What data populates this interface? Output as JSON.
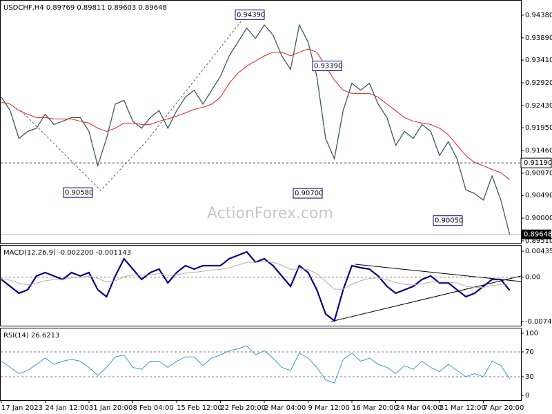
{
  "watermark": "ActionForex.com",
  "chart_data": [
    {
      "type": "line",
      "title": "USDCHF,H4 0.89769 0.89811 0.89603 0.89648",
      "categories": [
        "17 Jan 2023",
        null,
        null,
        null,
        null,
        "24 Jan 12:00",
        null,
        null,
        null,
        null,
        "31 Jan 20:00",
        null,
        null,
        null,
        null,
        "8 Feb 04:00",
        null,
        null,
        null,
        null,
        "15 Feb 12:00",
        null,
        null,
        null,
        null,
        "22 Feb 20:00",
        null,
        null,
        null,
        null,
        "2 Mar 04:00",
        null,
        null,
        null,
        null,
        "9 Mar 12:00",
        null,
        null,
        null,
        null,
        "16 Mar 20:00",
        null,
        null,
        null,
        null,
        "24 Mar 04:00",
        null,
        null,
        null,
        null,
        "31 Mar 12:00",
        null,
        null,
        null,
        null,
        "7 Apr 20:00",
        null,
        null,
        null
      ],
      "series": [
        {
          "color": "#3a5a5a",
          "values": [
            0.9261,
            0.9232,
            0.9172,
            0.9187,
            0.9194,
            0.9224,
            0.9202,
            0.9209,
            0.9217,
            0.9217,
            0.9187,
            0.9113,
            0.9172,
            0.9246,
            0.9254,
            0.9209,
            0.9194,
            0.9217,
            0.9232,
            0.9194,
            0.9232,
            0.9261,
            0.9276,
            0.9246,
            0.9276,
            0.9306,
            0.935,
            0.938,
            0.941,
            0.9388,
            0.9417,
            0.9395,
            0.935,
            0.9321,
            0.9417,
            0.938,
            0.9306,
            0.9172,
            0.9128,
            0.9232,
            0.9291,
            0.9276,
            0.9291,
            0.9246,
            0.9217,
            0.9157,
            0.9187,
            0.9172,
            0.9202,
            0.9187,
            0.9135,
            0.9165,
            0.9128,
            0.9061,
            0.9053,
            0.9039,
            0.9091,
            0.9039,
            0.89648
          ]
        },
        {
          "color": "#e02020",
          "values": [
            0.925,
            0.9246,
            0.9232,
            0.9224,
            0.9217,
            0.9217,
            0.9214,
            0.9214,
            0.9214,
            0.9209,
            0.9205,
            0.9194,
            0.9187,
            0.9194,
            0.9205,
            0.9205,
            0.9202,
            0.9202,
            0.9209,
            0.9214,
            0.922,
            0.9227,
            0.9235,
            0.9239,
            0.9246,
            0.9261,
            0.9291,
            0.9313,
            0.9328,
            0.9339,
            0.935,
            0.9358,
            0.9358,
            0.935,
            0.9358,
            0.9365,
            0.9358,
            0.9328,
            0.9298,
            0.9276,
            0.9269,
            0.9269,
            0.9269,
            0.9261,
            0.9246,
            0.9232,
            0.9217,
            0.9209,
            0.9205,
            0.9202,
            0.9194,
            0.918,
            0.9157,
            0.9135,
            0.912,
            0.9113,
            0.9105,
            0.9098,
            0.9083
          ]
        }
      ],
      "ylim": [
        0.89465,
        0.94692
      ],
      "yticks": [
        {
          "value": 0.9438,
          "label": "0.94380"
        },
        {
          "value": 0.9389,
          "label": "0.93890"
        },
        {
          "value": 0.9341,
          "label": "0.93410"
        },
        {
          "value": 0.9292,
          "label": "0.92920"
        },
        {
          "value": 0.9243,
          "label": "0.92430"
        },
        {
          "value": 0.9195,
          "label": "0.91950"
        },
        {
          "value": 0.9146,
          "label": "0.91460"
        },
        {
          "value": 0.9097,
          "label": "0.90970"
        },
        {
          "value": 0.9049,
          "label": "0.90490"
        },
        {
          "value": 0.9,
          "label": "0.90000"
        },
        {
          "value": 0.8951,
          "label": "0.89510"
        }
      ],
      "annotations": [
        {
          "value": 0.9439,
          "label": "0.94390"
        },
        {
          "value": 0.9339,
          "label": "0.93390"
        },
        {
          "value": 0.9058,
          "label": "0.90580"
        },
        {
          "value": 0.907,
          "label": "0.90700"
        },
        {
          "value": 0.9005,
          "label": "0.90050"
        }
      ],
      "level_line": {
        "value": 0.9119,
        "label": "0.91190"
      },
      "last_price": {
        "value": 0.89648,
        "label": "0.89648"
      }
    },
    {
      "type": "line",
      "title": "MACD(12,26,9) -0.002200 -0.001143",
      "series": [
        {
          "color": "#000080",
          "values": [
            -0.00038,
            -0.00153,
            -0.00269,
            -0.00211,
            0.0002,
            0.00078,
            0.0002,
            -0.00038,
            0.00078,
            0.0002,
            0.00078,
            -0.00211,
            -0.00326,
            0.0002,
            0.00309,
            0.00135,
            -0.00038,
            0.00078,
            0.00135,
            -0.00095,
            0.00078,
            0.00193,
            0.00135,
            0.00193,
            0.00193,
            0.00193,
            0.00309,
            0.00366,
            0.00424,
            0.00251,
            0.00309,
            0.00193,
            0.0002,
            -0.00153,
            0.00193,
            0.00078,
            -0.00211,
            -0.00615,
            -0.0073,
            -0.00211,
            0.00193,
            0.00158,
            0.00135,
            0.0002,
            -0.00153,
            -0.00269,
            -0.00211,
            -0.00153,
            -0.00038,
            0.0002,
            -0.00095,
            -0.00095,
            -0.00211,
            -0.00326,
            -0.00269,
            -0.00153,
            -0.00038,
            -0.00038,
            -0.0022
          ]
        },
        {
          "color": "#c8a8a8",
          "values": [
            -0.0002,
            -0.0005,
            -0.001,
            -0.0013,
            -0.001,
            -0.0006,
            -0.0004,
            -0.0004,
            -0.0001,
            0.0,
            0.0002,
            -0.0002,
            -0.0008,
            -0.0006,
            0.0001,
            0.0004,
            0.0003,
            0.0004,
            0.0006,
            0.0003,
            0.0004,
            0.0007,
            0.0008,
            0.001,
            0.0012,
            0.0013,
            0.0016,
            0.002,
            0.0025,
            0.0025,
            0.0026,
            0.0025,
            0.002,
            0.0013,
            0.0014,
            0.0013,
            0.0006,
            -0.0007,
            -0.002,
            -0.002,
            -0.0012,
            -0.0006,
            -0.0002,
            -0.0001,
            -0.0004,
            -0.0009,
            -0.0012,
            -0.0013,
            -0.0011,
            -0.0008,
            -0.0008,
            -0.0008,
            -0.001,
            -0.0015,
            -0.0017,
            -0.0017,
            -0.0014,
            -0.0012,
            -0.001143
          ]
        }
      ],
      "ylim": [
        -0.008109,
        0.005277
      ],
      "yticks": [
        0.004354,
        {
          "value": 0,
          "label": "0.00"
        },
        -0.007417
      ]
    },
    {
      "type": "line",
      "title": "RSI(14) 26.6213",
      "series": [
        {
          "color": "#3c9cc0",
          "values": [
            55,
            45,
            35,
            40,
            50,
            60,
            50,
            55,
            58,
            55,
            45,
            32,
            45,
            62,
            65,
            45,
            42,
            55,
            55,
            45,
            55,
            62,
            62,
            48,
            60,
            65,
            72,
            75,
            80,
            65,
            72,
            60,
            45,
            40,
            68,
            60,
            45,
            25,
            20,
            58,
            68,
            55,
            60,
            50,
            45,
            35,
            48,
            42,
            55,
            45,
            38,
            50,
            40,
            30,
            35,
            30,
            55,
            48,
            26.6213
          ]
        }
      ],
      "ylim": [
        -7.8,
        107.8
      ],
      "yticks": [
        100,
        70,
        30,
        0
      ]
    }
  ]
}
